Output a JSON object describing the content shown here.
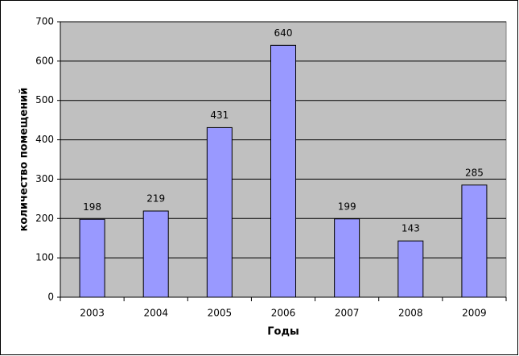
{
  "chart_data": {
    "type": "bar",
    "x_label": "Годы",
    "y_label": "количество помещений",
    "categories": [
      "2003",
      "2004",
      "2005",
      "2006",
      "2007",
      "2008",
      "2009"
    ],
    "values": [
      198,
      219,
      431,
      640,
      199,
      143,
      285
    ],
    "color": "#9999ff",
    "ylim": [
      0,
      700
    ],
    "yticks": [
      0,
      100,
      200,
      300,
      400,
      500,
      600,
      700
    ],
    "grid": true,
    "plot_background": "#c0c0c0"
  }
}
